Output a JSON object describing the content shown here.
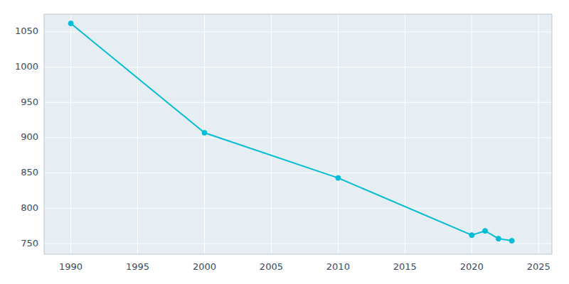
{
  "chart_data": {
    "type": "line",
    "x": [
      1990,
      2000,
      2010,
      2020,
      2021,
      2022,
      2023
    ],
    "values": [
      1062,
      907,
      843,
      762,
      768,
      757,
      754
    ],
    "color": "#00BCD4",
    "marker": "circle",
    "xlim": [
      1988,
      2026
    ],
    "ylim": [
      735,
      1075
    ],
    "xticks": [
      1990,
      1995,
      2000,
      2005,
      2010,
      2015,
      2020,
      2025
    ],
    "yticks": [
      750,
      800,
      850,
      900,
      950,
      1000,
      1050
    ],
    "grid": true
  }
}
